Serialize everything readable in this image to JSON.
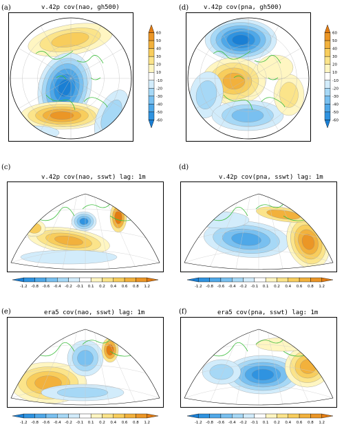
{
  "chart_data": [
    {
      "type": "heatmap",
      "panel": "(a)",
      "title": "v.42p  cov(nao, gh500)",
      "projection": "polar stereographic",
      "colorbar": {
        "orientation": "vertical",
        "levels": [
          60,
          50,
          40,
          30,
          20,
          10,
          -10,
          -20,
          -30,
          -40,
          -50,
          -60
        ]
      }
    },
    {
      "type": "heatmap",
      "panel": "(d)",
      "title": "v.42p  cov(pna, gh500)",
      "projection": "polar stereographic",
      "colorbar": {
        "orientation": "vertical",
        "levels": [
          60,
          50,
          40,
          30,
          20,
          10,
          -10,
          -20,
          -30,
          -40,
          -50,
          -60
        ]
      }
    },
    {
      "type": "heatmap",
      "panel": "(c)",
      "title": "v.42p  cov(nao, sswt)  lag: 1m",
      "projection": "conic",
      "colorbar": {
        "orientation": "horizontal",
        "levels": [
          -1.2,
          -0.8,
          -0.6,
          -0.4,
          -0.2,
          -0.1,
          0.1,
          0.2,
          0.4,
          0.6,
          0.8,
          1.2
        ]
      }
    },
    {
      "type": "heatmap",
      "panel": "(d)",
      "title": "v.42p  cov(pna, sswt)  lag: 1m",
      "projection": "conic",
      "colorbar": {
        "orientation": "horizontal",
        "levels": [
          -1.2,
          -0.8,
          -0.6,
          -0.4,
          -0.2,
          -0.1,
          0.1,
          0.2,
          0.4,
          0.6,
          0.8,
          1.2
        ]
      }
    },
    {
      "type": "heatmap",
      "panel": "(e)",
      "title": "era5  cov(nao, sswt)  lag: 1m",
      "projection": "conic",
      "colorbar": {
        "orientation": "horizontal",
        "levels": [
          -1.2,
          -0.8,
          -0.6,
          -0.4,
          -0.2,
          -0.1,
          0.1,
          0.2,
          0.4,
          0.6,
          0.8,
          1.2
        ]
      }
    },
    {
      "type": "heatmap",
      "panel": "(f)",
      "title": "era5  cov(pna, sswt)  lag: 1m",
      "projection": "conic",
      "colorbar": {
        "orientation": "horizontal",
        "levels": [
          -1.2,
          -0.8,
          -0.6,
          -0.4,
          -0.2,
          -0.1,
          0.1,
          0.2,
          0.4,
          0.6,
          0.8,
          1.2
        ]
      }
    }
  ],
  "palette": {
    "neg": [
      "#1a7fd4",
      "#2f93e0",
      "#4fa8e8",
      "#79c0f0",
      "#a6d8f6",
      "#d2ecfb"
    ],
    "pos": [
      "#fff6c2",
      "#fbe48a",
      "#f8cd5c",
      "#f2b13c",
      "#eb9626",
      "#e27c12"
    ],
    "coast": "#3fbf3f",
    "contour": "#333333"
  }
}
